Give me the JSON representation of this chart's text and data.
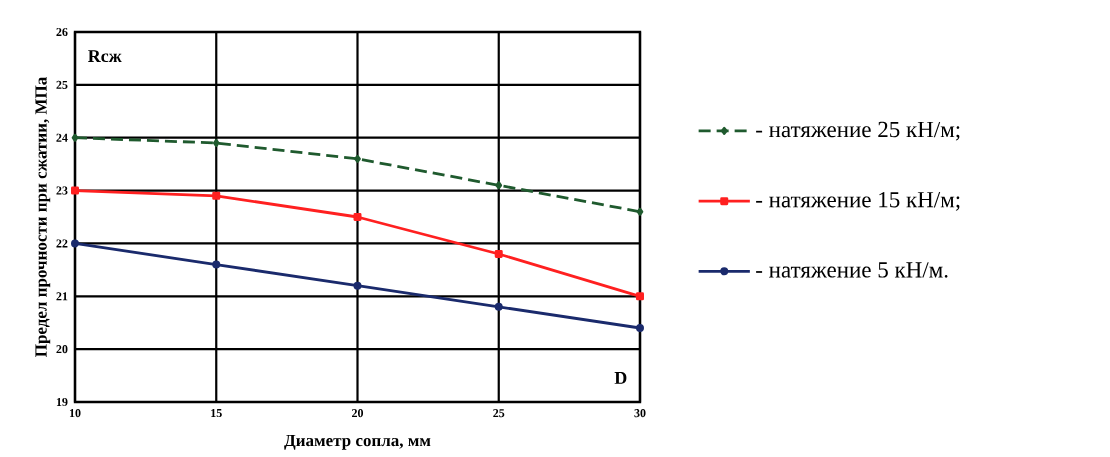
{
  "chart_data": {
    "type": "line",
    "xlabel": "Диаметр сопла, мм",
    "ylabel": "Предел прочности при сжатии, МПа",
    "x": [
      10,
      15,
      20,
      25,
      30
    ],
    "series": [
      {
        "name": "- натяжение 25 кН/м;",
        "color": "#1f5a2e",
        "values": [
          24,
          23.9,
          23.6,
          23.1,
          22.6
        ],
        "line_style": "dashed",
        "marker": "diamond"
      },
      {
        "name": "- натяжение 15 кН/м;",
        "color": "#ff2020",
        "values": [
          23,
          22.9,
          22.5,
          21.8,
          21.0
        ],
        "line_style": "solid",
        "marker": "square"
      },
      {
        "name": "- натяжение 5 кН/м.",
        "color": "#1a2a6c",
        "values": [
          22,
          21.6,
          21.2,
          20.8,
          20.4
        ],
        "line_style": "solid",
        "marker": "circle"
      }
    ],
    "xlim": [
      10,
      30
    ],
    "ylim": [
      19,
      26
    ],
    "xticks": [
      10,
      15,
      20,
      25,
      30
    ],
    "yticks": [
      19,
      20,
      21,
      22,
      23,
      24,
      25,
      26
    ],
    "grid": true,
    "legend": "right",
    "annotations": [
      "Rсж",
      "D"
    ]
  }
}
